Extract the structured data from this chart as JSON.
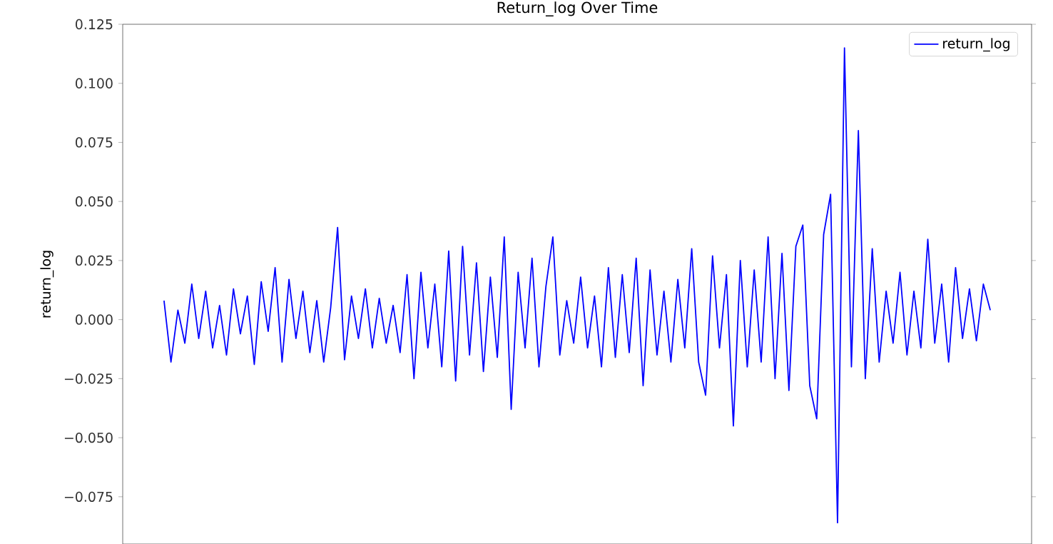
{
  "chart_data": {
    "type": "line",
    "title": "Return_log Over Time",
    "ylabel": "return_log",
    "legend": "top right",
    "tick_labels": "y",
    "categories": [
      null,
      null,
      null,
      null,
      null,
      null,
      null,
      null,
      null,
      null,
      null,
      null,
      null,
      null,
      null,
      null,
      null,
      null,
      null,
      null,
      null,
      null,
      null,
      null,
      null,
      null,
      null,
      null,
      null,
      null,
      null,
      null,
      null,
      null,
      null,
      null,
      null,
      null,
      null,
      null,
      null,
      null,
      null,
      null,
      null,
      null,
      null,
      null,
      null,
      null,
      null,
      null,
      null,
      null,
      null,
      null,
      null,
      null,
      null,
      null,
      null,
      null,
      null,
      null,
      null,
      null,
      null,
      null,
      null,
      null,
      null,
      null,
      null,
      null,
      null,
      null,
      null,
      null,
      null,
      null,
      null,
      null,
      null,
      null,
      null,
      null,
      null,
      null,
      null,
      null,
      null,
      null,
      null,
      null,
      null,
      null,
      null,
      null,
      null,
      null,
      null,
      null,
      null,
      null,
      null,
      null,
      null,
      null,
      null,
      null,
      null,
      null,
      null,
      null,
      null,
      null,
      null,
      null,
      null,
      null
    ],
    "series": [
      {
        "name": "return_log",
        "color": "#0000ff",
        "values": [
          0.008,
          -0.018,
          0.004,
          -0.01,
          0.015,
          -0.008,
          0.012,
          -0.012,
          0.006,
          -0.015,
          0.013,
          -0.006,
          0.01,
          -0.019,
          0.016,
          -0.005,
          0.022,
          -0.018,
          0.017,
          -0.008,
          0.012,
          -0.014,
          0.008,
          -0.018,
          0.005,
          0.039,
          -0.017,
          0.01,
          -0.008,
          0.013,
          -0.012,
          0.009,
          -0.01,
          0.006,
          -0.014,
          0.019,
          -0.025,
          0.02,
          -0.012,
          0.015,
          -0.02,
          0.029,
          -0.026,
          0.031,
          -0.015,
          0.024,
          -0.022,
          0.018,
          -0.016,
          0.035,
          -0.038,
          0.02,
          -0.012,
          0.026,
          -0.02,
          0.014,
          0.035,
          -0.015,
          0.008,
          -0.01,
          0.018,
          -0.012,
          0.01,
          -0.02,
          0.022,
          -0.016,
          0.019,
          -0.014,
          0.026,
          -0.028,
          0.021,
          -0.015,
          0.012,
          -0.018,
          0.017,
          -0.012,
          0.03,
          -0.018,
          -0.032,
          0.027,
          -0.012,
          0.019,
          -0.045,
          0.025,
          -0.02,
          0.021,
          -0.018,
          0.035,
          -0.025,
          0.028,
          -0.03,
          0.031,
          0.04,
          -0.028,
          -0.042,
          0.036,
          0.053,
          -0.086,
          0.115,
          -0.02,
          0.08,
          -0.025,
          0.03,
          -0.018,
          0.012,
          -0.01,
          0.02,
          -0.015,
          0.012,
          -0.012,
          0.034,
          -0.01,
          0.015,
          -0.018,
          0.022,
          -0.008,
          0.013,
          -0.009,
          0.015,
          0.004
        ]
      }
    ],
    "ylim": [
      -0.095,
      0.125
    ],
    "yticks": [
      {
        "value": -0.075,
        "label": "−0.075"
      },
      {
        "value": -0.05,
        "label": "−0.050"
      },
      {
        "value": -0.025,
        "label": "−0.025"
      },
      {
        "value": 0,
        "label": "0.000"
      },
      {
        "value": 0.025,
        "label": "0.025"
      },
      {
        "value": 0.05,
        "label": "0.050"
      },
      {
        "value": 0.075,
        "label": "0.075"
      },
      {
        "value": 0.1,
        "label": "0.100"
      },
      {
        "value": 0.125,
        "label": "0.125"
      }
    ]
  }
}
